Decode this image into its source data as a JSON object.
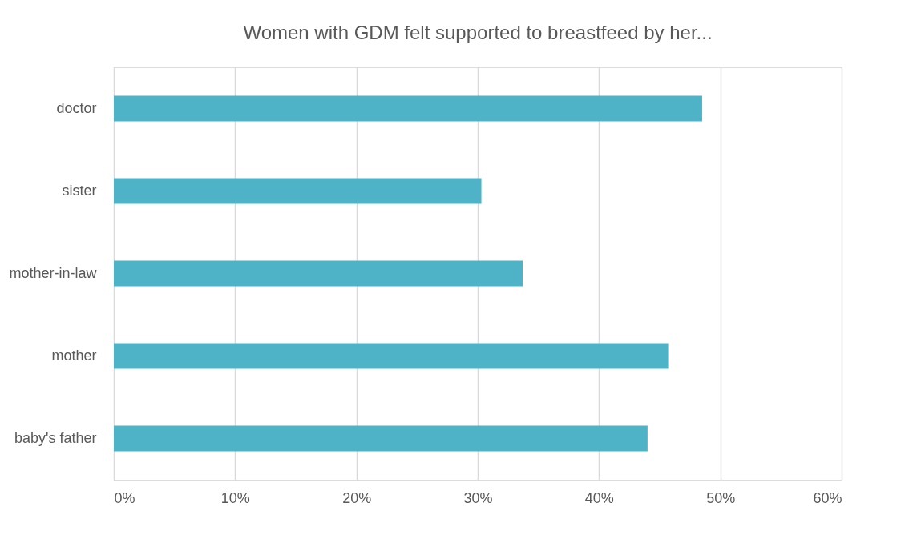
{
  "chart_data": {
    "type": "bar",
    "orientation": "horizontal",
    "title": "Women with GDM felt supported to breastfeed by her...",
    "categories": [
      "doctor",
      "sister",
      "mother-in-law",
      "mother",
      "baby's father"
    ],
    "values": [
      48.5,
      30.3,
      33.7,
      45.7,
      44.0
    ],
    "color": "#4fb3c8",
    "xlim": [
      0,
      60
    ],
    "xticks": [
      {
        "value": 0,
        "label": "0%"
      },
      {
        "value": 10,
        "label": "10%"
      },
      {
        "value": 20,
        "label": "20%"
      },
      {
        "value": 30,
        "label": "30%"
      },
      {
        "value": 40,
        "label": "40%"
      },
      {
        "value": 50,
        "label": "50%"
      },
      {
        "value": 60,
        "label": "60%"
      }
    ],
    "grid": "x"
  }
}
